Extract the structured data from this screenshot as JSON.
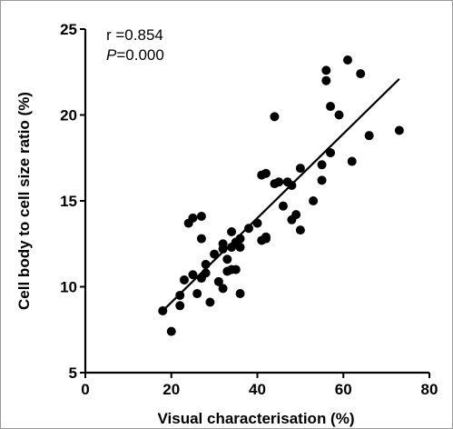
{
  "chart_data": {
    "type": "scatter",
    "xlabel": "Visual characterisation (%)",
    "ylabel": "Cell body to cell size ratio (%)",
    "xlim": [
      0,
      80
    ],
    "ylim": [
      5,
      25
    ],
    "xticks": [
      "0",
      "20",
      "40",
      "60",
      "80"
    ],
    "yticks": [
      "5",
      "10",
      "15",
      "20",
      "25"
    ],
    "annotation": {
      "r_text": "r =0.854",
      "p_symbol": "P",
      "p_value": "=0.000"
    },
    "grid": false,
    "regression_line": {
      "x": [
        18,
        73
      ],
      "y": [
        8.6,
        22.1
      ]
    },
    "points": [
      {
        "x": 18,
        "y": 8.6
      },
      {
        "x": 20,
        "y": 7.4
      },
      {
        "x": 22,
        "y": 8.9
      },
      {
        "x": 22,
        "y": 9.5
      },
      {
        "x": 23,
        "y": 10.4
      },
      {
        "x": 24,
        "y": 13.7
      },
      {
        "x": 25,
        "y": 14.0
      },
      {
        "x": 25,
        "y": 10.7
      },
      {
        "x": 26,
        "y": 9.6
      },
      {
        "x": 27,
        "y": 14.1
      },
      {
        "x": 27,
        "y": 12.8
      },
      {
        "x": 27,
        "y": 10.5
      },
      {
        "x": 28,
        "y": 11.3
      },
      {
        "x": 28,
        "y": 10.8
      },
      {
        "x": 29,
        "y": 9.1
      },
      {
        "x": 30,
        "y": 11.9
      },
      {
        "x": 31,
        "y": 10.3
      },
      {
        "x": 32,
        "y": 12.5
      },
      {
        "x": 32,
        "y": 12.2
      },
      {
        "x": 32,
        "y": 9.9
      },
      {
        "x": 33,
        "y": 11.6
      },
      {
        "x": 33,
        "y": 10.9
      },
      {
        "x": 34,
        "y": 13.2
      },
      {
        "x": 34,
        "y": 12.3
      },
      {
        "x": 34,
        "y": 11.0
      },
      {
        "x": 35,
        "y": 12.6
      },
      {
        "x": 35,
        "y": 11.0
      },
      {
        "x": 36,
        "y": 12.8
      },
      {
        "x": 36,
        "y": 12.3
      },
      {
        "x": 36,
        "y": 9.6
      },
      {
        "x": 38,
        "y": 13.4
      },
      {
        "x": 40,
        "y": 13.7
      },
      {
        "x": 41,
        "y": 12.7
      },
      {
        "x": 41,
        "y": 16.5
      },
      {
        "x": 42,
        "y": 16.6
      },
      {
        "x": 42,
        "y": 12.9
      },
      {
        "x": 42,
        "y": 12.8
      },
      {
        "x": 44,
        "y": 19.9
      },
      {
        "x": 44,
        "y": 16.0
      },
      {
        "x": 45,
        "y": 16.1
      },
      {
        "x": 46,
        "y": 14.7
      },
      {
        "x": 47,
        "y": 16.1
      },
      {
        "x": 48,
        "y": 15.9
      },
      {
        "x": 48,
        "y": 13.9
      },
      {
        "x": 49,
        "y": 14.2
      },
      {
        "x": 50,
        "y": 16.9
      },
      {
        "x": 50,
        "y": 13.3
      },
      {
        "x": 53,
        "y": 15.0
      },
      {
        "x": 55,
        "y": 17.1
      },
      {
        "x": 55,
        "y": 16.2
      },
      {
        "x": 56,
        "y": 22.6
      },
      {
        "x": 56,
        "y": 22.0
      },
      {
        "x": 57,
        "y": 20.5
      },
      {
        "x": 57,
        "y": 17.8
      },
      {
        "x": 59,
        "y": 20.0
      },
      {
        "x": 61,
        "y": 23.2
      },
      {
        "x": 62,
        "y": 17.3
      },
      {
        "x": 64,
        "y": 22.4
      },
      {
        "x": 66,
        "y": 18.8
      },
      {
        "x": 73,
        "y": 19.1
      }
    ]
  }
}
